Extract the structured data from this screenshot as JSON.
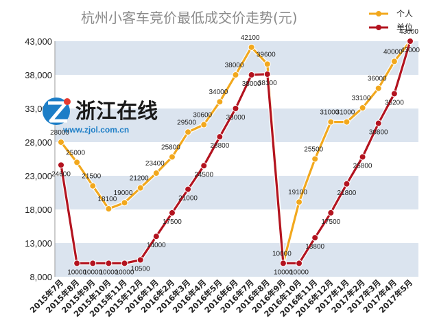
{
  "chart_data": {
    "type": "line",
    "title": "杭州小客车竞价最低成交价走势(元)",
    "categories": [
      "2015年7月",
      "2015年8月",
      "2015年9月",
      "2015年10月",
      "2015年11月",
      "2015年12月",
      "2016年1月",
      "2016年2月",
      "2016年3月",
      "2016年4月",
      "2016年5月",
      "2016年6月",
      "2016年7月",
      "2016年8月",
      "2016年9月",
      "2016年10月",
      "2016年11月",
      "2016年12月",
      "2017年1月",
      "2017年2月",
      "2017年3月",
      "2017年4月",
      "2017年5月"
    ],
    "series": [
      {
        "name": "个人",
        "color": "#f2a81d",
        "values": [
          28000,
          25000,
          21500,
          18100,
          19000,
          21200,
          23400,
          25800,
          29500,
          30600,
          34000,
          38000,
          42100,
          39600,
          10000,
          19100,
          25500,
          31000,
          31000,
          33100,
          36000,
          40000,
          43000
        ]
      },
      {
        "name": "单位",
        "color": "#b3131f",
        "values": [
          24600,
          10000,
          10000,
          10000,
          10000,
          10500,
          14000,
          17500,
          21000,
          24500,
          28800,
          33000,
          38000,
          38100,
          10000,
          10000,
          13800,
          17500,
          21800,
          25800,
          30800,
          35200,
          43000
        ]
      }
    ],
    "yticks": [
      "8,000",
      "13,000",
      "18,000",
      "23,000",
      "28,000",
      "33,000",
      "38,000",
      "43,000"
    ],
    "ylim": [
      8000,
      43000
    ],
    "data_labels": {
      "个人": [
        "28000",
        "25000",
        "21500",
        "18100",
        "19000",
        "21200",
        "23400",
        "25800",
        "29500",
        "30600",
        "34000",
        "38000",
        "42100",
        "39600",
        "10000",
        "19100",
        "25500",
        "31000",
        "31000",
        "33100",
        "36000",
        "40000",
        "43000"
      ],
      "单位": [
        "24600",
        "10000",
        "10000",
        "10000",
        "10000",
        "10500",
        "14000",
        "17500",
        "21000",
        "24500",
        "28800",
        "33000",
        "38000",
        "38100",
        "10000",
        "10000",
        "13800",
        "17500",
        "21800",
        "25800",
        "30800",
        "35200",
        "43000"
      ]
    },
    "legend_position": "top-right",
    "grid": "alternating horizontal bands"
  },
  "watermark": {
    "logo_text": "浙江在线",
    "url": "www.zjol.com.cn",
    "logo_colors": [
      "#1d7ec7",
      "#e53a2f"
    ]
  },
  "colors": {
    "band": "#dbe4ef",
    "personal": "#f2a81d",
    "unit": "#b3131f"
  }
}
